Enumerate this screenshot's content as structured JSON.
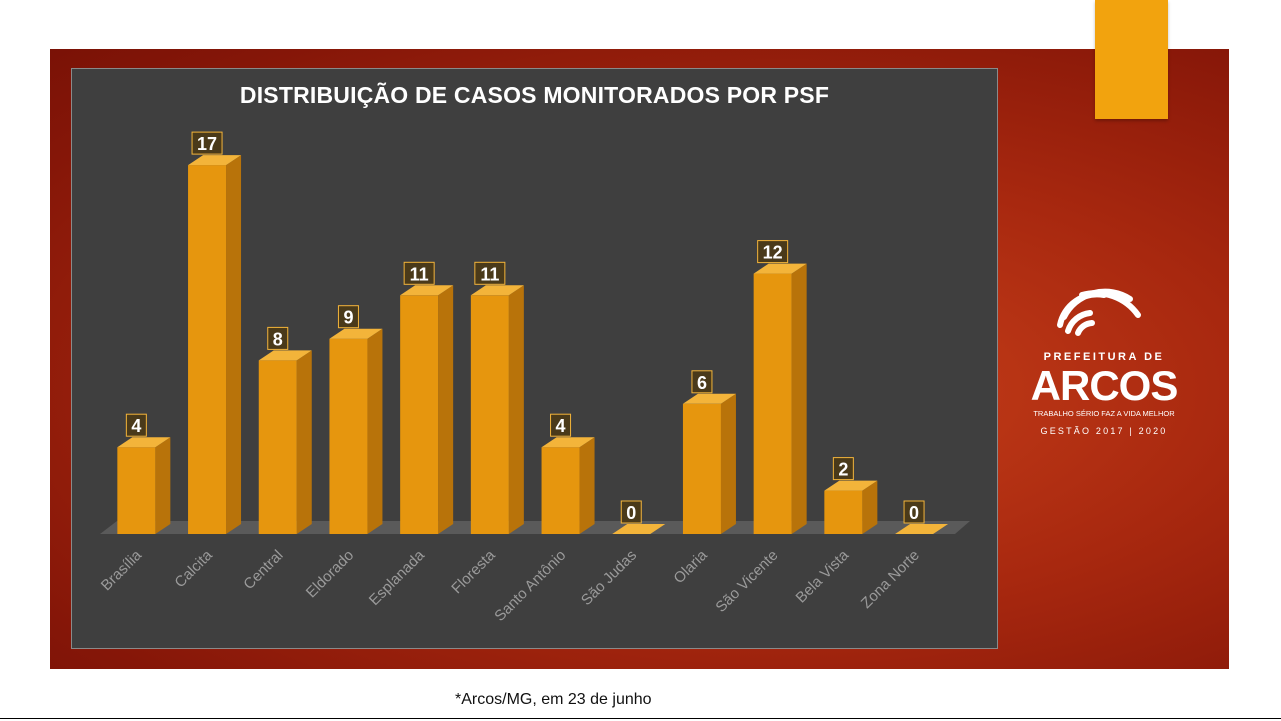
{
  "chart_data": {
    "type": "bar",
    "title": "DISTRIBUIÇÃO DE CASOS MONITORADOS POR PSF",
    "categories": [
      "Brasília",
      "Calcita",
      "Central",
      "Eldorado",
      "Esplanada",
      "Floresta",
      "Santo Antônio",
      "São Judas",
      "Olaria",
      "São Vicente",
      "Bela Vista",
      "Zona Norte"
    ],
    "values": [
      4,
      17,
      8,
      9,
      11,
      11,
      4,
      0,
      6,
      12,
      2,
      0
    ],
    "data_labels": true,
    "style": "3d-column",
    "grid": false,
    "colors": {
      "bar_front": "#e6960e",
      "bar_side": "#b8730a",
      "bar_top": "#f3b43a",
      "panel": "#3f3f3f"
    }
  },
  "logo": {
    "line1": "PREFEITURA DE",
    "name": "ARCOS",
    "slogan": "TRABALHO SÉRIO FAZ A VIDA MELHOR",
    "term": "GESTÃO 2017 | 2020",
    "icon": "arcs-logo-icon"
  },
  "footnote": "*Arcos/MG, em 23 de junho",
  "colors": {
    "slide_background": "#a8280f",
    "accent": "#f2a30e"
  }
}
